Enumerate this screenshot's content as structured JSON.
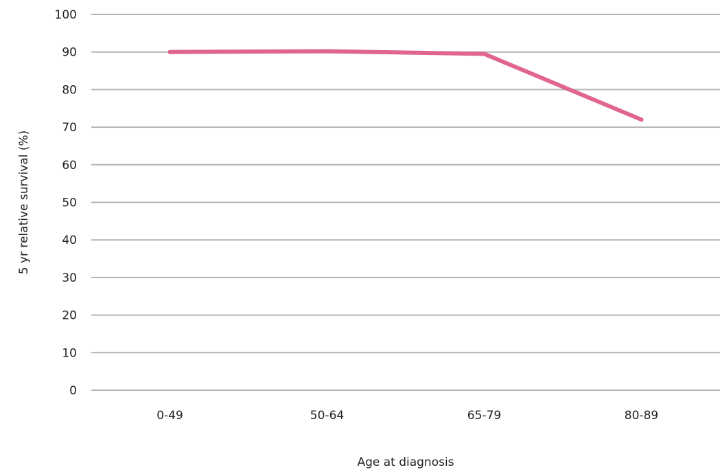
{
  "colors": {
    "series": "#e06690",
    "grid": "#b3b3b3",
    "text": "#222222"
  },
  "chart_data": {
    "type": "line",
    "title": "",
    "xlabel": "Age at diagnosis",
    "ylabel": "5 yr relative survival (%)",
    "categories": [
      "0-49",
      "50-64",
      "65-79",
      "80-89"
    ],
    "series": [
      {
        "values": [
          90,
          90.2,
          89.5,
          72
        ]
      }
    ],
    "ylim": [
      0,
      100
    ],
    "yticks": [
      0,
      10,
      20,
      30,
      40,
      50,
      60,
      70,
      80,
      90,
      100
    ],
    "grid": true,
    "legend": "none"
  }
}
